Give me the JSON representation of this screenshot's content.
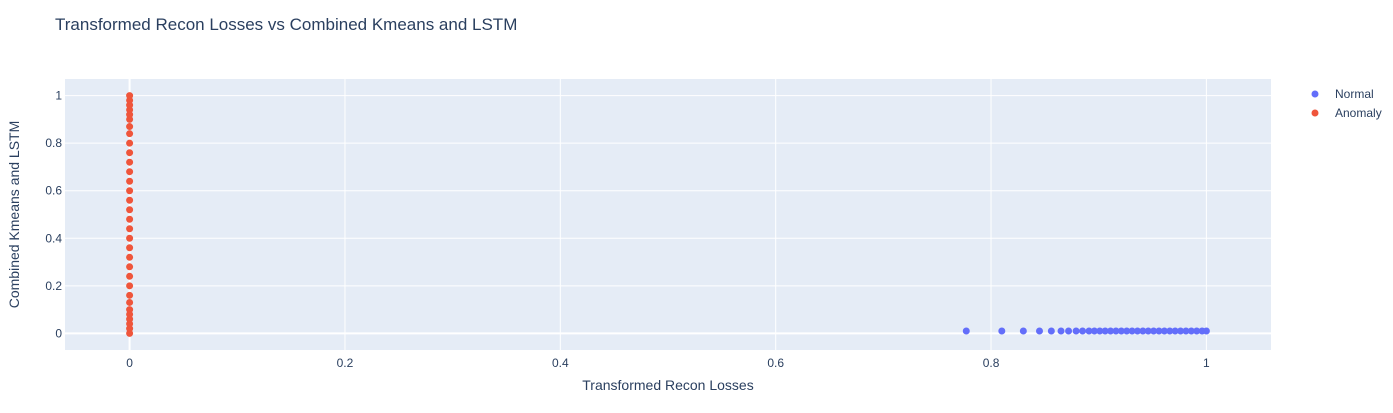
{
  "chart_data": {
    "type": "scatter",
    "title": "Transformed Recon Losses vs Combined Kmeans and LSTM",
    "xlabel": "Transformed Recon Losses",
    "ylabel": "Combined Kmeans and LSTM",
    "xlim": [
      -0.06,
      1.06
    ],
    "ylim": [
      -0.07,
      1.07
    ],
    "x_ticks": [
      0,
      0.2,
      0.4,
      0.6,
      0.8,
      1
    ],
    "x_tick_labels": [
      "0",
      "0.2",
      "0.4",
      "0.6",
      "0.8",
      "1"
    ],
    "y_ticks": [
      0,
      0.2,
      0.4,
      0.6,
      0.8,
      1
    ],
    "y_tick_labels": [
      "0",
      "0.2",
      "0.4",
      "0.6",
      "0.8",
      "1"
    ],
    "grid": true,
    "legend_position": "top-right",
    "colors": {
      "plot_bg": "#e5ecf6",
      "grid": "#ffffff",
      "text": "#2a3f5f"
    },
    "series": [
      {
        "name": "Normal",
        "color": "#636efa",
        "points": [
          [
            0.777,
            0.01
          ],
          [
            0.81,
            0.01
          ],
          [
            0.83,
            0.01
          ],
          [
            0.845,
            0.01
          ],
          [
            0.856,
            0.01
          ],
          [
            0.865,
            0.01
          ],
          [
            0.872,
            0.01
          ],
          [
            0.879,
            0.01
          ],
          [
            0.885,
            0.01
          ],
          [
            0.891,
            0.01
          ],
          [
            0.896,
            0.01
          ],
          [
            0.901,
            0.01
          ],
          [
            0.906,
            0.01
          ],
          [
            0.911,
            0.01
          ],
          [
            0.916,
            0.01
          ],
          [
            0.921,
            0.01
          ],
          [
            0.926,
            0.01
          ],
          [
            0.931,
            0.01
          ],
          [
            0.936,
            0.01
          ],
          [
            0.941,
            0.01
          ],
          [
            0.946,
            0.01
          ],
          [
            0.951,
            0.01
          ],
          [
            0.956,
            0.01
          ],
          [
            0.961,
            0.01
          ],
          [
            0.966,
            0.01
          ],
          [
            0.971,
            0.01
          ],
          [
            0.976,
            0.01
          ],
          [
            0.981,
            0.01
          ],
          [
            0.986,
            0.01
          ],
          [
            0.991,
            0.01
          ],
          [
            0.996,
            0.01
          ],
          [
            1.0,
            0.01
          ]
        ]
      },
      {
        "name": "Anomaly",
        "color": "#ef553b",
        "points": [
          [
            0.0,
            0.0
          ],
          [
            0.0,
            0.02
          ],
          [
            0.0,
            0.04
          ],
          [
            0.0,
            0.06
          ],
          [
            0.0,
            0.08
          ],
          [
            0.0,
            0.1
          ],
          [
            0.0,
            0.13
          ],
          [
            0.0,
            0.16
          ],
          [
            0.0,
            0.2
          ],
          [
            0.0,
            0.24
          ],
          [
            0.0,
            0.28
          ],
          [
            0.0,
            0.32
          ],
          [
            0.0,
            0.36
          ],
          [
            0.0,
            0.4
          ],
          [
            0.0,
            0.44
          ],
          [
            0.0,
            0.48
          ],
          [
            0.0,
            0.52
          ],
          [
            0.0,
            0.56
          ],
          [
            0.0,
            0.6
          ],
          [
            0.0,
            0.64
          ],
          [
            0.0,
            0.68
          ],
          [
            0.0,
            0.72
          ],
          [
            0.0,
            0.76
          ],
          [
            0.0,
            0.8
          ],
          [
            0.0,
            0.84
          ],
          [
            0.0,
            0.87
          ],
          [
            0.0,
            0.9
          ],
          [
            0.0,
            0.92
          ],
          [
            0.0,
            0.94
          ],
          [
            0.0,
            0.96
          ],
          [
            0.0,
            0.98
          ],
          [
            0.0,
            1.0
          ]
        ]
      }
    ]
  }
}
